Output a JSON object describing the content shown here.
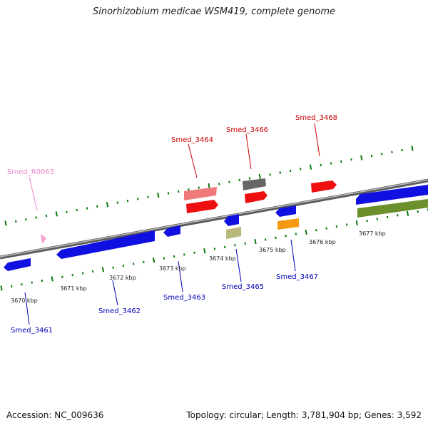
{
  "title": "Sinorhizobium medicae WSM419, complete genome",
  "footer": {
    "accession": "Accession: NC_009636",
    "summary": "Topology: circular; Length: 3,781,904 bp; Genes: 3,592"
  },
  "colors": {
    "backbone": "#888888",
    "blue": "#1010e0",
    "red": "#ee1010",
    "pink": "#f07a7a",
    "darkgray": "#666666",
    "khaki": "#b8b87a",
    "orange": "#f59a10",
    "olive": "#6b8f2a",
    "tick": "#0a7a0a",
    "forward_label": "#cc0000",
    "reverse_label": "#0000bb",
    "rna_label": "#ee88cc"
  },
  "scale_labels": [
    "3670 kbp",
    "3671 kbp",
    "3672 kbp",
    "3673 kbp",
    "3674 kbp",
    "3675 kbp",
    "3676 kbp",
    "3677 kbp"
  ],
  "gene_labels": {
    "g3461": "Smed_3461",
    "g3462": "Smed_3462",
    "g3463": "Smed_3463",
    "g3464": "Smed_3464",
    "g3465": "Smed_3465",
    "g3466": "Smed_3466",
    "g3467": "Smed_3467",
    "g3468": "Smed_3468",
    "r0063": "Smed_R0063"
  }
}
